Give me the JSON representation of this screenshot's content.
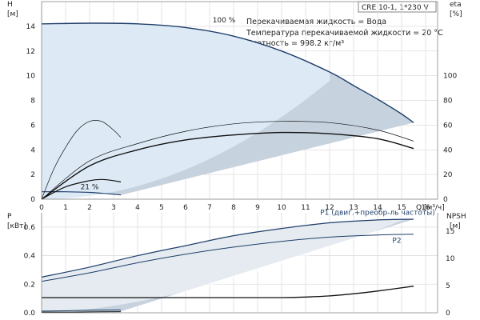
{
  "colors": {
    "region_fill": "#c6d2de",
    "light_region_fill": "#ddeaf6",
    "curve_dark": "#1f3f6b",
    "curve_black": "#111111",
    "grid": "#dddddd"
  },
  "header": {
    "model": "CRE 10-1, 1*230 V",
    "liquid_line": "Перекачиваемая жидкость = Вода",
    "temperature_line": "Температура перекачиваемой жидкости = 20 °C",
    "density_line": "Плотность = 998.2 кг/м³"
  },
  "chart_data": [
    {
      "type": "line",
      "name": "head-efficiency",
      "ylabel": "H",
      "ylabel_unit": "[м]",
      "y2label": "eta",
      "y2label_unit": "[%]",
      "xlabel": "Q [м³/ч]",
      "xlim": [
        0,
        16.5
      ],
      "ylim": [
        0,
        16
      ],
      "y2lim": [
        0,
        160
      ],
      "x_ticks": [
        0,
        1,
        2,
        3,
        4,
        5,
        6,
        7,
        8,
        9,
        10,
        11,
        12,
        13,
        14,
        15,
        16
      ],
      "y_ticks": [
        0,
        2,
        4,
        6,
        8,
        10,
        12,
        14
      ],
      "y2_ticks": [
        0,
        20,
        40,
        60,
        80,
        100
      ],
      "grid": true,
      "annotations": [
        {
          "text": "100 %",
          "x": 7.6,
          "y": 14.3
        },
        {
          "text": "21 %",
          "x": 2.0,
          "y": 0.8
        }
      ],
      "series": [
        {
          "id": "h100",
          "axis": "y",
          "color": "dark",
          "width": 1.4,
          "x": [
            0,
            2,
            4,
            6,
            8,
            10,
            12,
            13,
            14,
            15,
            15.5
          ],
          "y": [
            14.2,
            14.25,
            14.2,
            13.9,
            13.2,
            12.0,
            10.3,
            9.2,
            8.1,
            6.9,
            6.2
          ]
        },
        {
          "id": "h21",
          "axis": "y",
          "color": "dark",
          "width": 1.2,
          "x": [
            0,
            1,
            2,
            3,
            3.3
          ],
          "y": [
            0.6,
            0.6,
            0.55,
            0.4,
            0.35
          ]
        },
        {
          "id": "eta_tall",
          "axis": "y2",
          "color": "black",
          "width": 0.7,
          "x": [
            0,
            0.5,
            1,
            1.5,
            2,
            2.5,
            3,
            3.3
          ],
          "y": [
            0,
            24,
            42,
            56,
            63,
            63,
            56,
            50
          ]
        },
        {
          "id": "eta_small",
          "axis": "y2",
          "color": "black",
          "width": 1.2,
          "x": [
            0,
            1,
            2,
            2.5,
            3,
            3.3
          ],
          "y": [
            0,
            10,
            15,
            16,
            15,
            14
          ]
        },
        {
          "id": "eta_thin",
          "axis": "y2",
          "color": "black",
          "width": 0.7,
          "x": [
            0,
            2,
            4,
            6,
            8,
            10,
            12,
            14,
            15.5
          ],
          "y": [
            0,
            31,
            45,
            55,
            61,
            63,
            62,
            56,
            47
          ]
        },
        {
          "id": "eta_thick",
          "axis": "y2",
          "color": "black",
          "width": 1.4,
          "x": [
            0,
            2,
            4,
            6,
            8,
            10,
            12,
            14,
            15.5
          ],
          "y": [
            0,
            27,
            40,
            48,
            52,
            54,
            53,
            49,
            41
          ]
        }
      ]
    },
    {
      "type": "line",
      "name": "power-npsh",
      "ylabel": "P",
      "ylabel_unit": "[кВт]",
      "y2label": "NPSH",
      "y2label_unit": "[м]",
      "xlim": [
        0,
        16.5
      ],
      "ylim": [
        0,
        0.7
      ],
      "y2lim": [
        0,
        18.375
      ],
      "y_ticks": [
        0.0,
        0.2,
        0.4,
        0.6
      ],
      "y2_ticks": [
        0,
        5,
        10,
        15
      ],
      "grid": true,
      "annotations": [
        {
          "text": "P1 (двиг.+преобр-ль частоты)",
          "x": 14.0,
          "y": 0.685
        },
        {
          "text": "P2",
          "x": 14.8,
          "y": 0.49
        }
      ],
      "series": [
        {
          "id": "p1",
          "axis": "y",
          "color": "dark",
          "width": 1.2,
          "x": [
            0,
            2,
            4,
            6,
            8,
            10,
            12,
            14,
            15.5
          ],
          "y": [
            0.25,
            0.32,
            0.4,
            0.47,
            0.54,
            0.59,
            0.63,
            0.65,
            0.655
          ]
        },
        {
          "id": "p2",
          "axis": "y",
          "color": "dark",
          "width": 1.0,
          "x": [
            0,
            2,
            4,
            6,
            8,
            10,
            12,
            14,
            15.5
          ],
          "y": [
            0.22,
            0.28,
            0.35,
            0.41,
            0.46,
            0.5,
            0.53,
            0.545,
            0.55
          ]
        },
        {
          "id": "npsh",
          "axis": "y2",
          "color": "black",
          "width": 1.3,
          "x": [
            0,
            4,
            8,
            10,
            11,
            12,
            13,
            14,
            15.5
          ],
          "y": [
            2.8,
            2.8,
            2.8,
            2.8,
            2.9,
            3.1,
            3.5,
            4.0,
            4.9
          ]
        },
        {
          "id": "p_low",
          "axis": "y",
          "color": "dark",
          "width": 1.0,
          "x": [
            0,
            1,
            2,
            3.3
          ],
          "y": [
            0.012,
            0.014,
            0.018,
            0.02
          ]
        },
        {
          "id": "npsh_low",
          "axis": "y",
          "color": "black",
          "width": 1.0,
          "x": [
            0,
            1,
            2,
            3.3
          ],
          "y": [
            0.005,
            0.005,
            0.006,
            0.008
          ]
        }
      ]
    }
  ]
}
